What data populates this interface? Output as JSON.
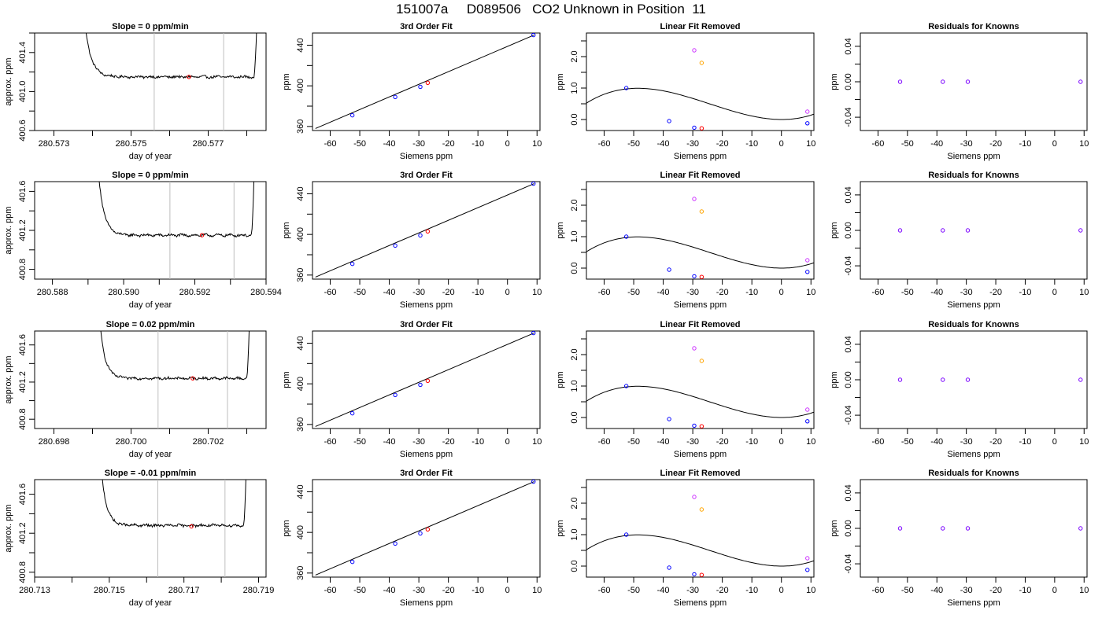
{
  "page": {
    "title": "151007a     D089506   CO2 Unknown in Position  11"
  },
  "colors": {
    "line": "#000000",
    "known_point": "#0000ff",
    "unknown_point": "#ff0000",
    "magenta_point": "#cc33ff",
    "orange_point": "#ffa500",
    "purple_point": "#7a00ff",
    "vline": "#bebebe"
  },
  "chart_data": [
    {
      "type": "line",
      "panel": "time-series",
      "row": 0,
      "title": "Slope =  0  ppm/min",
      "xlabel": "day of year",
      "ylabel": "approx. ppm",
      "xlim": [
        280.5725,
        280.5785
      ],
      "ylim": [
        400.6,
        401.6
      ],
      "xticks": [
        280.573,
        280.574,
        280.575,
        280.576,
        280.577,
        280.578
      ],
      "xtick_labels": [
        "280.573",
        "",
        "280.575",
        "",
        "280.577",
        ""
      ],
      "yticks": [
        400.6,
        400.8,
        401.0,
        401.2,
        401.4,
        401.6
      ],
      "ytick_labels": [
        "400.6",
        "",
        "401.0",
        "",
        "401.4",
        ""
      ],
      "vlines": [
        280.5756,
        280.5774
      ],
      "start": 280.5737,
      "end": 280.5783,
      "baseline": 401.15,
      "noise": 0.012,
      "marker": {
        "x": 280.5765,
        "y": 401.15
      }
    },
    {
      "type": "line",
      "panel": "time-series",
      "row": 1,
      "title": "Slope =  0  ppm/min",
      "xlabel": "day of year",
      "ylabel": "approx. ppm",
      "xlim": [
        280.5875,
        280.594
      ],
      "ylim": [
        400.7,
        401.7
      ],
      "xticks": [
        280.588,
        280.589,
        280.59,
        280.591,
        280.592,
        280.593,
        280.594
      ],
      "xtick_labels": [
        "280.588",
        "",
        "280.590",
        "",
        "280.592",
        "",
        "280.594"
      ],
      "yticks": [
        400.8,
        401.0,
        401.2,
        401.4,
        401.6
      ],
      "ytick_labels": [
        "400.8",
        "",
        "401.2",
        "",
        "401.6"
      ],
      "vlines": [
        280.5913,
        280.5931
      ],
      "start": 280.5892,
      "end": 280.5937,
      "baseline": 401.15,
      "noise": 0.012,
      "marker": {
        "x": 280.5922,
        "y": 401.15
      }
    },
    {
      "type": "line",
      "panel": "time-series",
      "row": 2,
      "title": "Slope =  0.02  ppm/min",
      "xlabel": "day of year",
      "ylabel": "approx. ppm",
      "xlim": [
        280.6975,
        280.7035
      ],
      "ylim": [
        400.7,
        401.75
      ],
      "xticks": [
        280.698,
        280.699,
        280.7,
        280.701,
        280.702,
        280.703
      ],
      "xtick_labels": [
        "280.698",
        "",
        "280.700",
        "",
        "280.702",
        ""
      ],
      "yticks": [
        400.8,
        401.0,
        401.2,
        401.4,
        401.6
      ],
      "ytick_labels": [
        "400.8",
        "",
        "401.2",
        "",
        "401.6"
      ],
      "vlines": [
        280.7007,
        280.7025
      ],
      "start": 280.6991,
      "end": 280.7031,
      "baseline": 401.24,
      "noise": 0.012,
      "marker": {
        "x": 280.7016,
        "y": 401.24
      }
    },
    {
      "type": "line",
      "panel": "time-series",
      "row": 3,
      "title": "Slope =  -0.01  ppm/min",
      "xlabel": "day of year",
      "ylabel": "approx. ppm",
      "xlim": [
        280.713,
        280.7192
      ],
      "ylim": [
        400.75,
        401.75
      ],
      "xticks": [
        280.713,
        280.714,
        280.715,
        280.716,
        280.717,
        280.718,
        280.719
      ],
      "xtick_labels": [
        "280.713",
        "",
        "280.715",
        "",
        "280.717",
        "",
        "280.719"
      ],
      "yticks": [
        400.8,
        401.0,
        401.2,
        401.4,
        401.6
      ],
      "ytick_labels": [
        "400.8",
        "",
        "401.2",
        "",
        "401.6"
      ],
      "vlines": [
        280.7163,
        280.7181
      ],
      "start": 280.7147,
      "end": 280.7187,
      "baseline": 401.28,
      "noise": 0.012,
      "marker": {
        "x": 280.7172,
        "y": 401.27
      }
    },
    {
      "type": "scatter",
      "panel": "fit",
      "title": "3rd Order Fit",
      "xlabel": "Siemens ppm",
      "ylabel": "ppm",
      "xlim": [
        -66,
        11
      ],
      "ylim": [
        356,
        452
      ],
      "xticks": [
        -60,
        -50,
        -40,
        -30,
        -20,
        -10,
        0,
        10
      ],
      "yticks": [
        360,
        380,
        400,
        420,
        440
      ],
      "ytick_labels": [
        "360",
        "",
        "400",
        "",
        "440"
      ],
      "line": [
        [
          -65,
          358
        ],
        [
          9,
          450
        ]
      ],
      "known": [
        [
          -52.5,
          371
        ],
        [
          -38,
          389
        ],
        [
          -29.5,
          399
        ],
        [
          8.8,
          450
        ]
      ],
      "unknown": [
        [
          -27,
          403
        ]
      ]
    },
    {
      "type": "scatter",
      "panel": "linear-removed",
      "title": "Linear Fit Removed",
      "xlabel": "Siemens ppm",
      "ylabel": "ppm",
      "xlim": [
        -66,
        11
      ],
      "ylim": [
        -0.35,
        2.75
      ],
      "xticks": [
        -60,
        -50,
        -40,
        -30,
        -20,
        -10,
        0,
        10
      ],
      "yticks": [
        0.0,
        0.5,
        1.0,
        1.5,
        2.0,
        2.5
      ],
      "ytick_labels": [
        "0.0",
        "",
        "1.0",
        "",
        "2.0",
        ""
      ],
      "known": [
        [
          -52.5,
          1.0
        ],
        [
          -38,
          -0.05
        ],
        [
          -29.5,
          -0.26
        ],
        [
          8.8,
          -0.12
        ]
      ],
      "unknown": [
        [
          -27,
          -0.28
        ]
      ],
      "magenta": [
        [
          -29.5,
          2.2
        ],
        [
          8.8,
          0.25
        ]
      ],
      "orange": [
        [
          -27,
          1.8
        ]
      ]
    },
    {
      "type": "scatter",
      "panel": "residuals",
      "title": "Residuals for Knowns",
      "xlabel": "Siemens ppm",
      "ylabel": "ppm",
      "xlim": [
        -66,
        11
      ],
      "ylim": [
        -0.055,
        0.055
      ],
      "xticks": [
        -60,
        -50,
        -40,
        -30,
        -20,
        -10,
        0,
        10
      ],
      "yticks": [
        -0.04,
        -0.02,
        0.0,
        0.02,
        0.04
      ],
      "ytick_labels": [
        "-0.04",
        "",
        "0.00",
        "",
        "0.04"
      ],
      "points": [
        [
          -52.5,
          0.0
        ],
        [
          -38,
          0.0
        ],
        [
          -29.5,
          0.0
        ],
        [
          8.8,
          0.0
        ]
      ]
    }
  ]
}
